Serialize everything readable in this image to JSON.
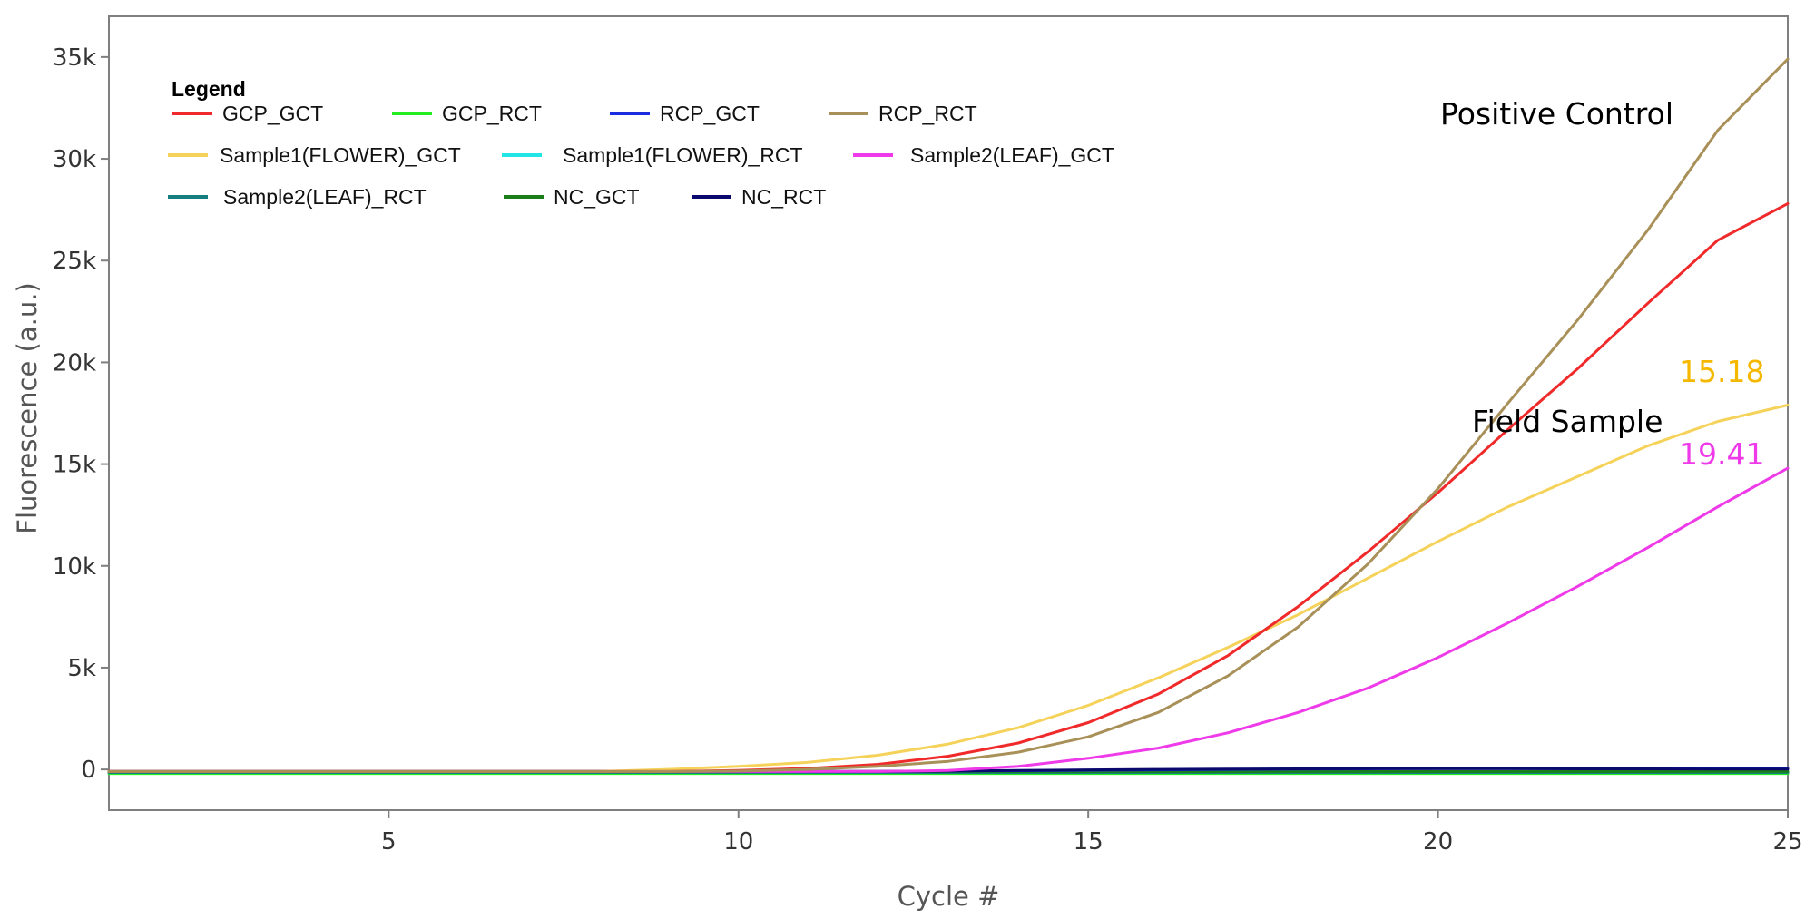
{
  "chart_data": {
    "type": "line",
    "title": "",
    "xlabel": "Cycle #",
    "ylabel": "Fluorescence (a.u.)",
    "xlim": [
      1,
      25
    ],
    "ylim": [
      -2000,
      37000
    ],
    "x_ticks": [
      5,
      10,
      15,
      20,
      25
    ],
    "y_ticks": [
      {
        "value": 0,
        "label": "0"
      },
      {
        "value": 5000,
        "label": "5k"
      },
      {
        "value": 10000,
        "label": "10k"
      },
      {
        "value": 15000,
        "label": "15k"
      },
      {
        "value": 20000,
        "label": "20k"
      },
      {
        "value": 25000,
        "label": "25k"
      },
      {
        "value": 30000,
        "label": "30k"
      },
      {
        "value": 35000,
        "label": "35k"
      }
    ],
    "grid": false,
    "legend": {
      "title": "Legend",
      "placement": "top-left",
      "entries": [
        "GCP_GCT",
        "GCP_RCT",
        "RCP_GCT",
        "RCP_RCT",
        "Sample1(FLOWER)_GCT",
        "Sample1(FLOWER)_RCT",
        "Sample2(LEAF)_GCT",
        "Sample2(LEAF)_RCT",
        "NC_GCT",
        "NC_RCT"
      ]
    },
    "x": [
      1,
      2,
      3,
      4,
      5,
      6,
      7,
      8,
      9,
      10,
      11,
      12,
      13,
      14,
      15,
      16,
      17,
      18,
      19,
      20,
      21,
      22,
      23,
      24,
      25
    ],
    "series": [
      {
        "name": "GCP_GCT",
        "color": "#f02a2a",
        "values": [
          -100,
          -100,
          -100,
          -100,
          -100,
          -100,
          -100,
          -100,
          -100,
          -50,
          50,
          250,
          650,
          1300,
          2300,
          3700,
          5600,
          8000,
          10700,
          13600,
          16700,
          19700,
          22900,
          26000,
          27800
        ]
      },
      {
        "name": "GCP_RCT",
        "color": "#22ee22",
        "values": [
          -200,
          -200,
          -200,
          -200,
          -200,
          -200,
          -200,
          -200,
          -200,
          -200,
          -200,
          -200,
          -200,
          -200,
          -200,
          -200,
          -200,
          -200,
          -200,
          -200,
          -200,
          -200,
          -200,
          -200,
          -200
        ]
      },
      {
        "name": "RCP_GCT",
        "color": "#1a2ee0",
        "values": [
          -100,
          -100,
          -100,
          -100,
          -100,
          -100,
          -100,
          -100,
          -100,
          -100,
          -100,
          -100,
          -80,
          -60,
          -40,
          -20,
          0,
          20,
          30,
          40,
          40,
          40,
          40,
          40,
          50
        ]
      },
      {
        "name": "RCP_RCT",
        "color": "#a89058",
        "values": [
          -100,
          -100,
          -100,
          -100,
          -100,
          -100,
          -100,
          -100,
          -100,
          -80,
          0,
          150,
          400,
          850,
          1600,
          2800,
          4600,
          7000,
          10100,
          13800,
          18000,
          22100,
          26500,
          31400,
          34900
        ]
      },
      {
        "name": "Sample1(FLOWER)_GCT",
        "color": "#f5d25a",
        "values": [
          -100,
          -100,
          -100,
          -100,
          -100,
          -100,
          -100,
          -100,
          0,
          150,
          350,
          700,
          1250,
          2050,
          3150,
          4500,
          6000,
          7600,
          9400,
          11200,
          12900,
          14400,
          15900,
          17100,
          17900
        ]
      },
      {
        "name": "Sample1(FLOWER)_RCT",
        "color": "#22e6e6",
        "values": [
          -150,
          -150,
          -150,
          -150,
          -150,
          -150,
          -150,
          -150,
          -150,
          -150,
          -150,
          -150,
          -150,
          -150,
          -150,
          -150,
          -150,
          -150,
          -150,
          -150,
          -150,
          -150,
          -150,
          -150,
          -150
        ]
      },
      {
        "name": "Sample2(LEAF)_GCT",
        "color": "#ee3ae8",
        "values": [
          -100,
          -100,
          -100,
          -100,
          -100,
          -100,
          -100,
          -100,
          -100,
          -100,
          -100,
          -100,
          -50,
          150,
          550,
          1050,
          1800,
          2800,
          4000,
          5500,
          7200,
          9000,
          10900,
          12900,
          14800
        ]
      },
      {
        "name": "Sample2(LEAF)_RCT",
        "color": "#157f7f",
        "values": [
          -150,
          -150,
          -150,
          -150,
          -150,
          -150,
          -150,
          -150,
          -150,
          -150,
          -150,
          -150,
          -150,
          -150,
          -150,
          -150,
          -150,
          -150,
          -150,
          -150,
          -150,
          -150,
          -150,
          -150,
          -150
        ]
      },
      {
        "name": "NC_GCT",
        "color": "#1a7f1a",
        "values": [
          -100,
          -100,
          -100,
          -100,
          -100,
          -100,
          -100,
          -100,
          -100,
          -100,
          -100,
          -100,
          -100,
          -100,
          -100,
          -100,
          -100,
          -100,
          -100,
          -100,
          -100,
          -100,
          -100,
          -100,
          -100
        ]
      },
      {
        "name": "NC_RCT",
        "color": "#0a0a6e",
        "values": [
          -100,
          -100,
          -100,
          -100,
          -100,
          -100,
          -100,
          -100,
          -100,
          -100,
          -100,
          -100,
          -80,
          -50,
          -20,
          0,
          20,
          30,
          40,
          40,
          40,
          30,
          30,
          20,
          20
        ]
      }
    ],
    "annotations": [
      {
        "text": "Positive Control",
        "color": "#000000"
      },
      {
        "text": "Field Sample",
        "color": "#000000"
      },
      {
        "text": "15.18",
        "color": "#f5b800"
      },
      {
        "text": "19.41",
        "color": "#ee3ae8"
      }
    ]
  }
}
